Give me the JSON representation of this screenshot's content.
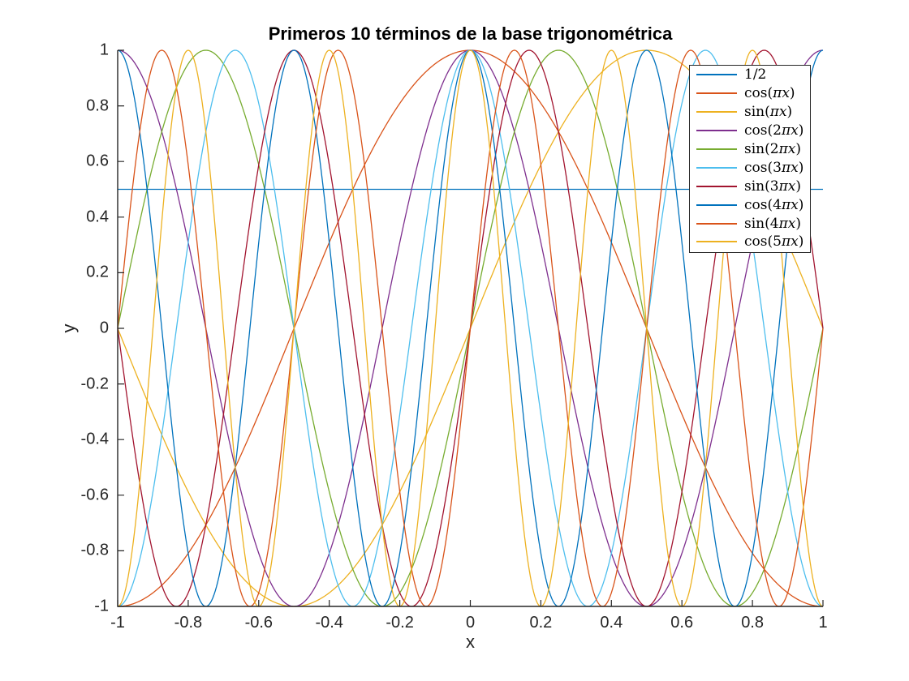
{
  "figure": {
    "background": "#ffffff"
  },
  "colors": {
    "axis": "#262626",
    "tick_text": "#262626",
    "title_text": "#000000",
    "legend_border": "#262626",
    "legend_background": "#ffffff"
  },
  "chart_data": {
    "type": "line",
    "title": "Primeros 10 términos de la base trigonométrica",
    "xlabel": "x",
    "ylabel": "y",
    "xlim": [
      -1,
      1
    ],
    "ylim": [
      -1,
      1
    ],
    "grid": false,
    "box": false,
    "legend_position": "northeast",
    "x_ticks": [
      -1,
      -0.8,
      -0.6,
      -0.4,
      -0.2,
      0,
      0.2,
      0.4,
      0.6,
      0.8,
      1
    ],
    "x_tick_labels": [
      "-1",
      "-0.8",
      "-0.6",
      "-0.4",
      "-0.2",
      "0",
      "0.2",
      "0.4",
      "0.6",
      "0.8",
      "1"
    ],
    "y_ticks": [
      -1,
      -0.8,
      -0.6,
      -0.4,
      -0.2,
      0,
      0.2,
      0.4,
      0.6,
      0.8,
      1
    ],
    "y_tick_labels": [
      "-1",
      "-0.8",
      "-0.6",
      "-0.4",
      "-0.2",
      "0",
      "0.2",
      "0.4",
      "0.6",
      "0.8",
      "1"
    ],
    "series": [
      {
        "label": "1/2",
        "fn": "const",
        "k": 0,
        "value": 0.5,
        "amplitude": 0,
        "color": "#0072BD"
      },
      {
        "label": "cos(πx)",
        "fn": "cos",
        "k": 1,
        "value": null,
        "amplitude": 1,
        "color": "#D95319"
      },
      {
        "label": "sin(πx)",
        "fn": "sin",
        "k": 1,
        "value": null,
        "amplitude": 1,
        "color": "#EDB120"
      },
      {
        "label": "cos(2πx)",
        "fn": "cos",
        "k": 2,
        "value": null,
        "amplitude": 1,
        "color": "#7E2F8E"
      },
      {
        "label": "sin(2πx)",
        "fn": "sin",
        "k": 2,
        "value": null,
        "amplitude": 1,
        "color": "#77AC30"
      },
      {
        "label": "cos(3πx)",
        "fn": "cos",
        "k": 3,
        "value": null,
        "amplitude": 1,
        "color": "#4DBEEE"
      },
      {
        "label": "sin(3πx)",
        "fn": "sin",
        "k": 3,
        "value": null,
        "amplitude": 1,
        "color": "#A2142F"
      },
      {
        "label": "cos(4πx)",
        "fn": "cos",
        "k": 4,
        "value": null,
        "amplitude": 1,
        "color": "#0072BD"
      },
      {
        "label": "sin(4πx)",
        "fn": "sin",
        "k": 4,
        "value": null,
        "amplitude": 1,
        "color": "#D95319"
      },
      {
        "label": "cos(5πx)",
        "fn": "cos",
        "k": 5,
        "value": null,
        "amplitude": 1,
        "color": "#EDB120"
      }
    ]
  }
}
